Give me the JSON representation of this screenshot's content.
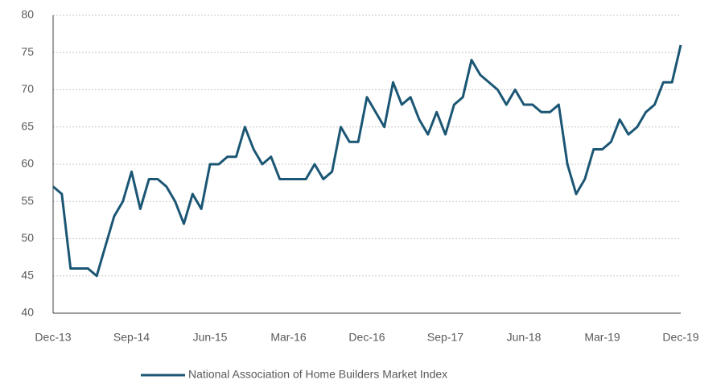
{
  "chart_data": {
    "type": "line",
    "categories": [
      "Dec-13",
      null,
      null,
      null,
      null,
      null,
      null,
      null,
      null,
      "Sep-14",
      null,
      null,
      null,
      null,
      null,
      null,
      null,
      null,
      "Jun-15",
      null,
      null,
      null,
      null,
      null,
      null,
      null,
      null,
      "Mar-16",
      null,
      null,
      null,
      null,
      null,
      null,
      null,
      null,
      "Dec-16",
      null,
      null,
      null,
      null,
      null,
      null,
      null,
      null,
      "Sep-17",
      null,
      null,
      null,
      null,
      null,
      null,
      null,
      null,
      "Jun-18",
      null,
      null,
      null,
      null,
      null,
      null,
      null,
      null,
      "Mar-19",
      null,
      null,
      null,
      null,
      null,
      null,
      null,
      null,
      "Dec-19"
    ],
    "series": [
      {
        "name": "National Association of Home Builders Market Index",
        "color": "#1b5674",
        "values": [
          57,
          56,
          46,
          46,
          46,
          45,
          49,
          53,
          55,
          59,
          54,
          58,
          58,
          57,
          55,
          52,
          56,
          54,
          60,
          60,
          61,
          61,
          65,
          62,
          60,
          61,
          58,
          58,
          58,
          58,
          60,
          58,
          59,
          65,
          63,
          63,
          69,
          67,
          65,
          71,
          68,
          69,
          66,
          64,
          67,
          64,
          68,
          69,
          74,
          72,
          71,
          70,
          68,
          70,
          68,
          68,
          67,
          67,
          68,
          60,
          56,
          58,
          62,
          62,
          63,
          66,
          64,
          65,
          67,
          68,
          71,
          71,
          76
        ]
      }
    ],
    "ylim": [
      40,
      80
    ],
    "yticks": [
      40,
      45,
      50,
      55,
      60,
      65,
      70,
      75,
      80
    ],
    "grid": true,
    "legend": "bottom"
  }
}
